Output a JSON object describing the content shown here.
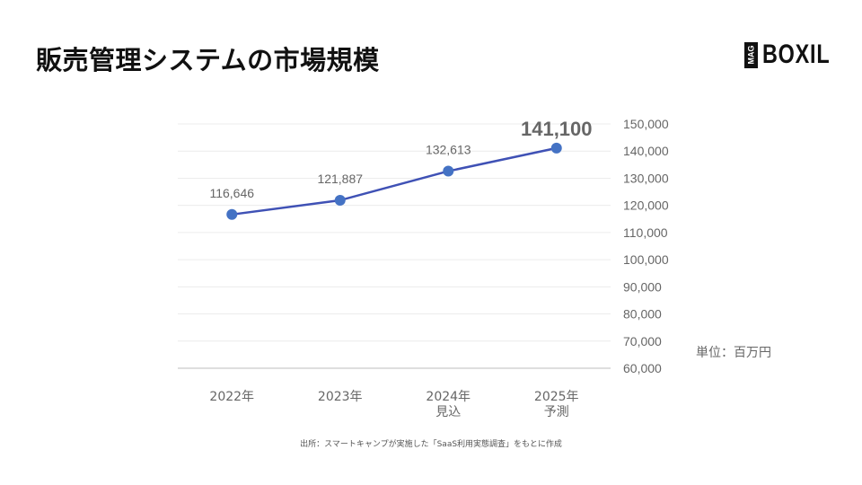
{
  "header": {
    "title": "販売管理システムの市場規模",
    "logo": {
      "mag": "MAG",
      "brand": "BOXIL"
    }
  },
  "chart_data": {
    "type": "line",
    "title": "販売管理システムの市場規模",
    "categories": [
      "2022年",
      "2023年",
      "2024年 見込",
      "2025年 予測"
    ],
    "category_lines": [
      [
        "2022年"
      ],
      [
        "2023年"
      ],
      [
        "2024年",
        "見込"
      ],
      [
        "2025年",
        "予測"
      ]
    ],
    "series": [
      {
        "name": "市場規模",
        "values": [
          116646,
          121887,
          132613,
          141100
        ],
        "color": "#3f51b5"
      }
    ],
    "data_labels": [
      "116,646",
      "121,887",
      "132,613",
      "141,100"
    ],
    "highlight_last_label": true,
    "ylabel": "",
    "xlabel": "",
    "ylim": [
      60000,
      150000
    ],
    "yticks": [
      150000,
      140000,
      130000,
      120000,
      110000,
      100000,
      90000,
      80000,
      70000,
      60000
    ],
    "ytick_labels": [
      "150,000",
      "140,000",
      "130,000",
      "120,000",
      "110,000",
      "100,000",
      "90,000",
      "80,000",
      "70,000",
      "60,000"
    ],
    "y_axis_position": "right",
    "grid": true,
    "unit": "単位：百万円",
    "marker_color": "#4472c4"
  },
  "footer": {
    "source": "出所：スマートキャンプが実施した「SaaS利用実態調査」をもとに作成"
  }
}
